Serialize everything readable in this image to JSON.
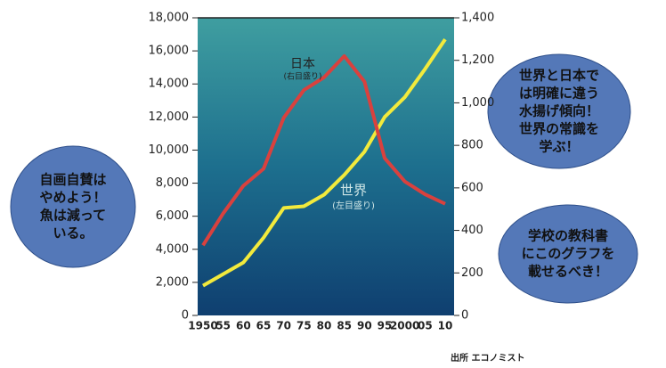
{
  "chart_data": {
    "type": "line",
    "categories": [
      "1950",
      "55",
      "60",
      "65",
      "70",
      "75",
      "80",
      "85",
      "90",
      "95",
      "2000",
      "05",
      "10"
    ],
    "series": [
      {
        "name": "世界",
        "scale_note": "(左目盛り)",
        "color": "#f2ea3c",
        "values": [
          1800,
          2500,
          3200,
          4700,
          6500,
          6600,
          7300,
          8500,
          9900,
          12000,
          13200,
          14900,
          16700
        ]
      },
      {
        "name": "日本",
        "scale_note": "(右目盛り)",
        "color": "#d9413e",
        "axis": "y2",
        "values": [
          330,
          480,
          610,
          690,
          930,
          1060,
          1120,
          1220,
          1100,
          740,
          630,
          570,
          525
        ]
      }
    ],
    "ylim": [
      0,
      18000
    ],
    "yticks": [
      0,
      {
        "value": 2000,
        "label": "2,000"
      },
      {
        "value": 4000,
        "label": "4,000"
      },
      {
        "value": 6000,
        "label": "6,000"
      },
      {
        "value": 8000,
        "label": "8,000"
      },
      {
        "value": 10000,
        "label": "10,000"
      },
      {
        "value": 12000,
        "label": "12,000"
      },
      {
        "value": 14000,
        "label": "14,000"
      },
      {
        "value": 16000,
        "label": "16,000"
      },
      {
        "value": 18000,
        "label": "18,000"
      }
    ],
    "y2lim": [
      0,
      1400
    ],
    "y2ticks": [
      0,
      200,
      400,
      600,
      800,
      {
        "value": 1000,
        "label": "1,000"
      },
      {
        "value": 1200,
        "label": "1,200"
      },
      {
        "value": 1400,
        "label": "1,400"
      }
    ],
    "source": "出所 エコノミスト",
    "annotations": [
      {
        "lines": [
          "自画自賛は",
          "やめよう！",
          "魚は減って",
          "いる。"
        ]
      },
      {
        "lines": [
          "世界と日本で",
          "は明確に違う",
          "水揚げ傾向！",
          "世界の常識を",
          "学ぶ！"
        ]
      },
      {
        "lines": [
          "学校の教科書",
          "にこのグラフを",
          "載せるべき！"
        ]
      }
    ]
  }
}
